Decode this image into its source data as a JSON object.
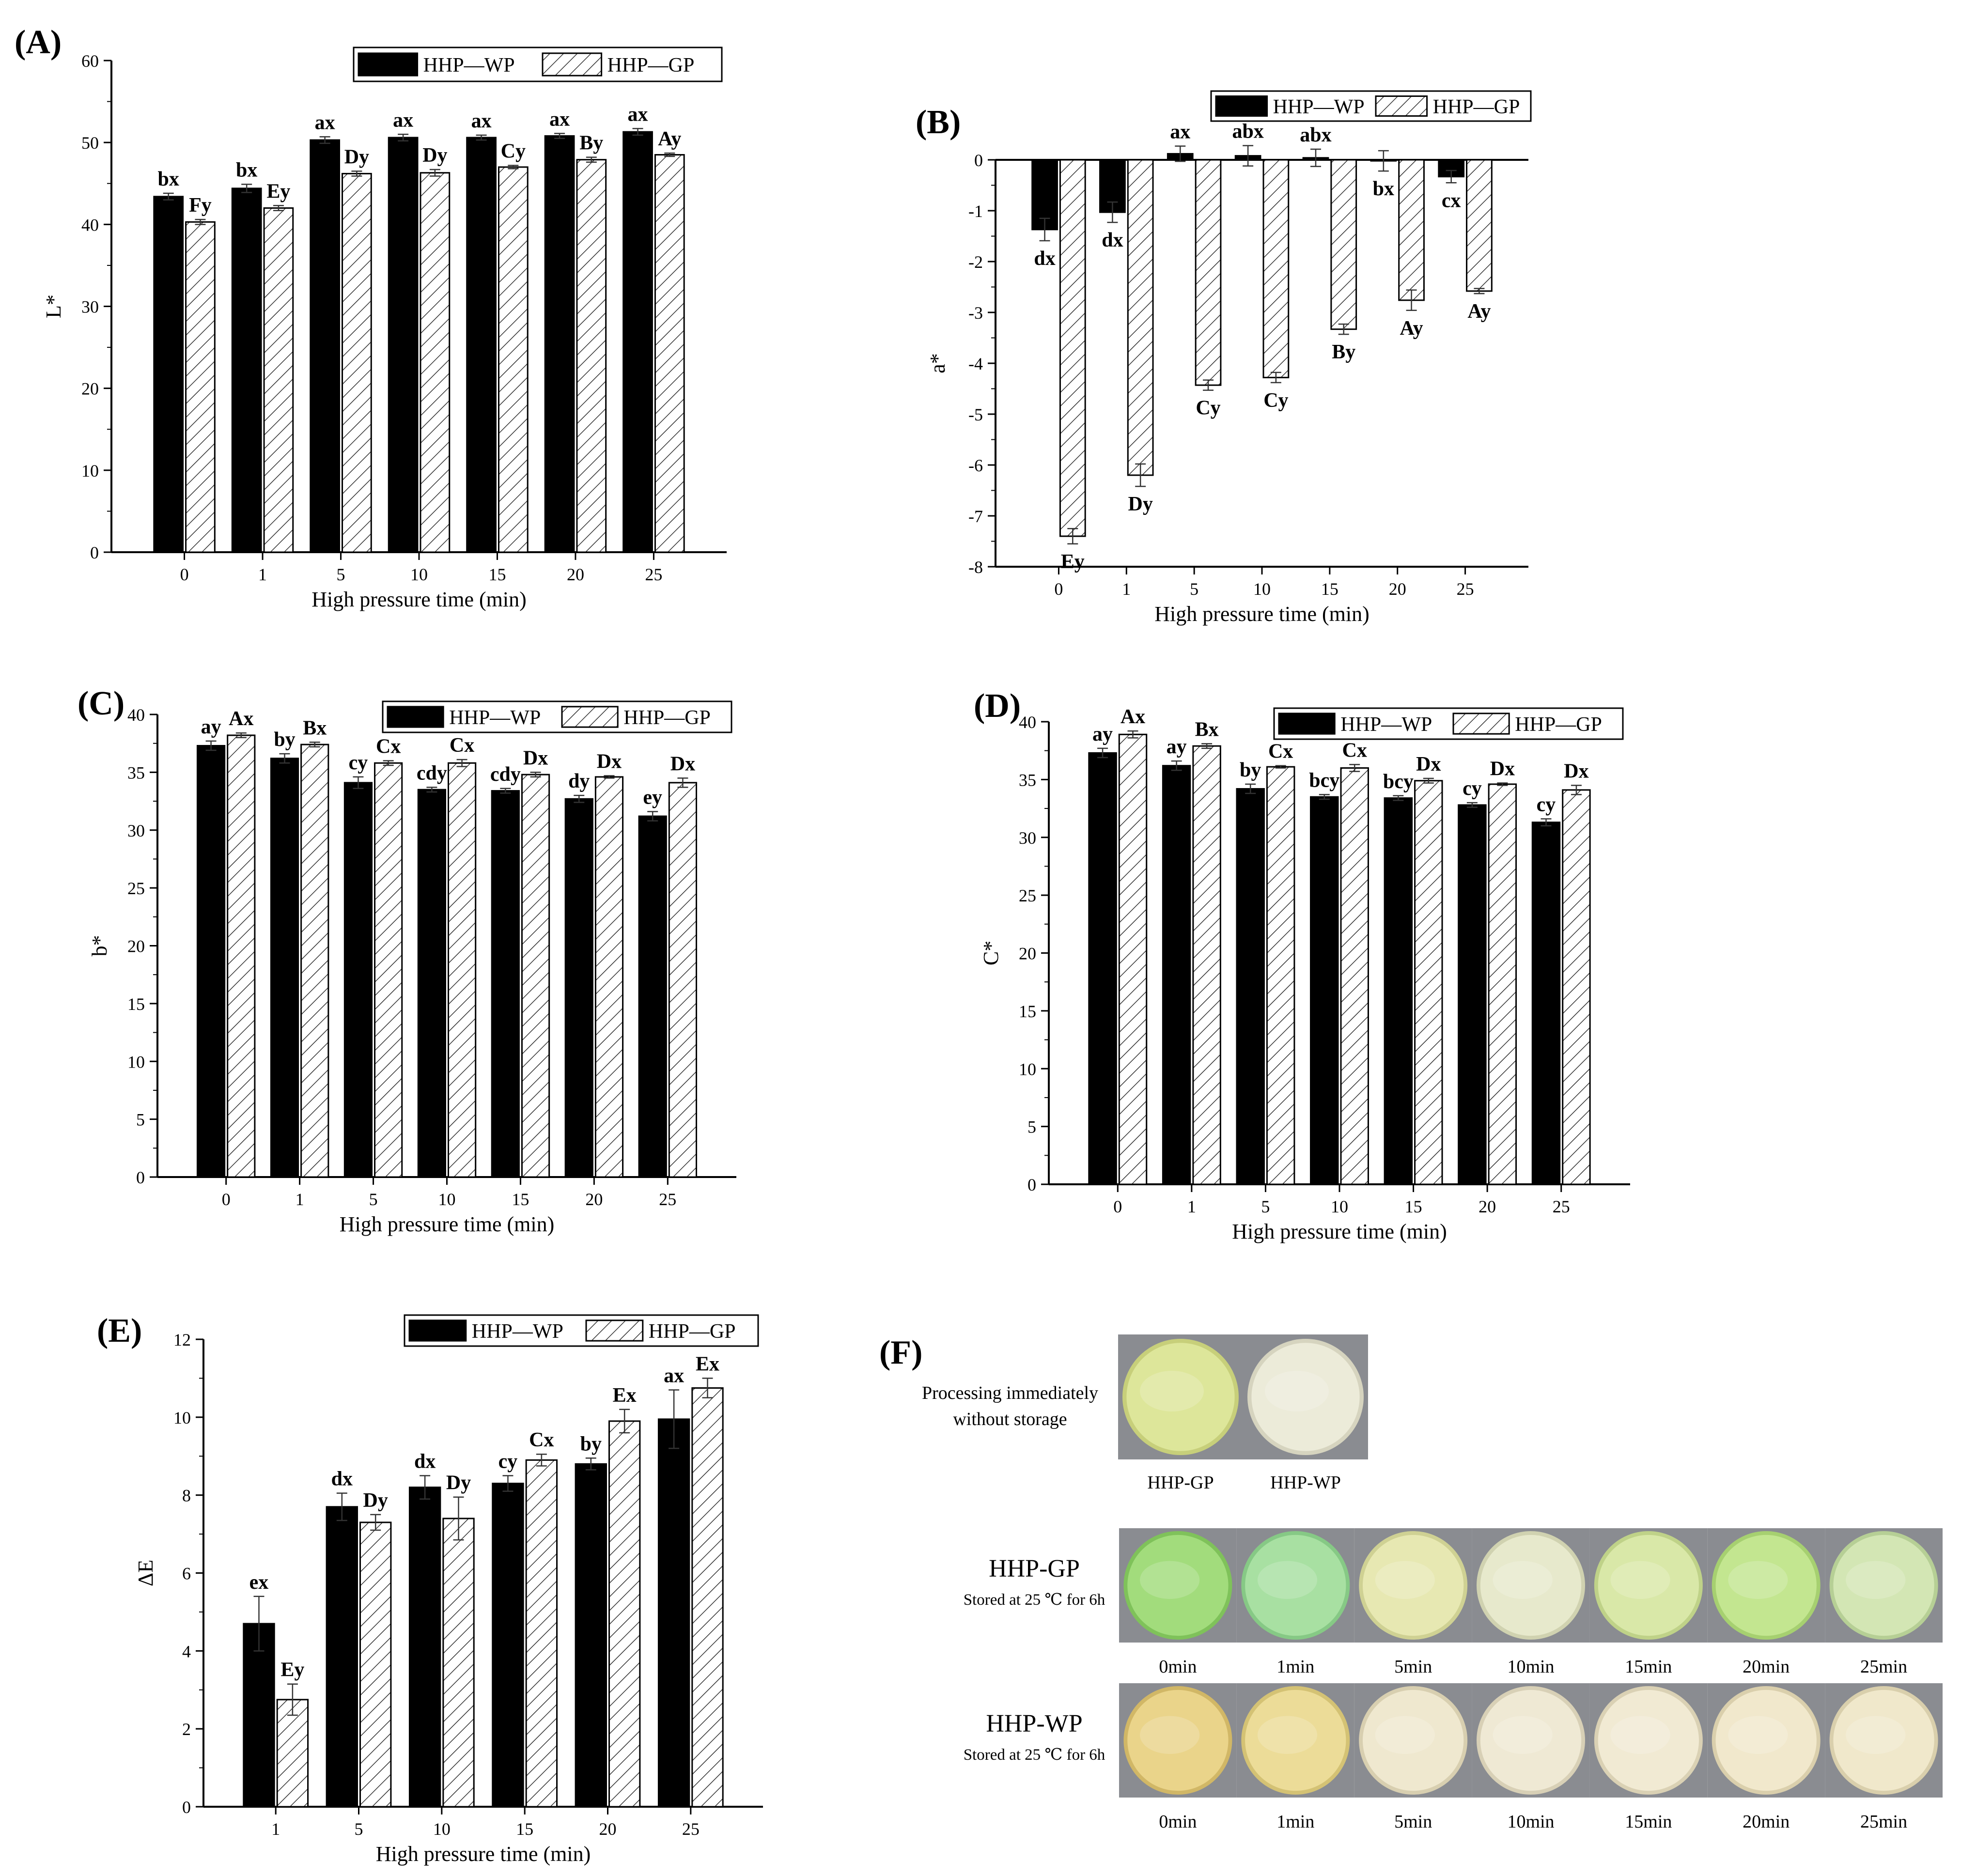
{
  "figure_caption": "",
  "series_names": [
    "HHP—WP",
    "HHP—GP"
  ],
  "chart_data": [
    {
      "id": "A",
      "panel_label": "(A)",
      "type": "bar",
      "xlabel": "High pressure time (min)",
      "ylabel": "L*",
      "ylim": [
        0,
        60
      ],
      "yticks": [
        0,
        10,
        20,
        30,
        40,
        50,
        60
      ],
      "categories": [
        "0",
        "1",
        "5",
        "10",
        "15",
        "20",
        "25"
      ],
      "legend": "top-right",
      "series": [
        {
          "name": "HHP—WP",
          "values": [
            43.4,
            44.4,
            50.3,
            50.6,
            50.6,
            50.8,
            51.3
          ],
          "errors": [
            0.4,
            0.5,
            0.4,
            0.4,
            0.3,
            0.3,
            0.4
          ],
          "labels": [
            "bx",
            "bx",
            "ax",
            "ax",
            "ax",
            "ax",
            "ax"
          ]
        },
        {
          "name": "HHP—GP",
          "values": [
            40.3,
            42.0,
            46.2,
            46.3,
            47.0,
            47.9,
            48.5
          ],
          "errors": [
            0.3,
            0.3,
            0.3,
            0.4,
            0.2,
            0.3,
            0.2
          ],
          "labels": [
            "Fy",
            "Ey",
            "Dy",
            "Dy",
            "Cy",
            "By",
            "Ay"
          ]
        }
      ]
    },
    {
      "id": "B",
      "panel_label": "(B)",
      "type": "bar",
      "xlabel": "High pressure time (min)",
      "ylabel": "a*",
      "ylim": [
        -8,
        0
      ],
      "yticks": [
        -8,
        -7,
        -6,
        -5,
        -4,
        -3,
        -2,
        -1,
        0
      ],
      "categories": [
        "0",
        "1",
        "5",
        "10",
        "15",
        "20",
        "25"
      ],
      "legend": "top-right",
      "series": [
        {
          "name": "HHP—WP",
          "values": [
            -1.37,
            -1.03,
            0.12,
            0.08,
            0.04,
            -0.02,
            -0.33
          ],
          "errors": [
            0.22,
            0.2,
            0.15,
            0.2,
            0.17,
            0.2,
            0.12
          ],
          "labels": [
            "dx",
            "dx",
            "ax",
            "abx",
            "abx",
            "bx",
            "cx"
          ]
        },
        {
          "name": "HHP—GP",
          "values": [
            -7.4,
            -6.2,
            -4.43,
            -4.28,
            -3.33,
            -2.76,
            -2.58
          ],
          "errors": [
            0.15,
            0.22,
            0.1,
            0.1,
            0.1,
            0.2,
            0.05
          ],
          "labels": [
            "Ey",
            "Dy",
            "Cy",
            "Cy",
            "By",
            "Ay",
            "Ay"
          ]
        }
      ]
    },
    {
      "id": "C",
      "panel_label": "(C)",
      "type": "bar",
      "xlabel": "High pressure time (min)",
      "ylabel": "b*",
      "ylim": [
        0,
        40
      ],
      "yticks": [
        0,
        5,
        10,
        15,
        20,
        25,
        30,
        35,
        40
      ],
      "categories": [
        "0",
        "1",
        "5",
        "10",
        "15",
        "20",
        "25"
      ],
      "legend": "top-right",
      "series": [
        {
          "name": "HHP—WP",
          "values": [
            37.3,
            36.2,
            34.1,
            33.5,
            33.4,
            32.7,
            31.2
          ],
          "errors": [
            0.4,
            0.4,
            0.5,
            0.2,
            0.2,
            0.3,
            0.4
          ],
          "labels": [
            "ay",
            "by",
            "cy",
            "cdy",
            "cdy",
            "dy",
            "ey"
          ]
        },
        {
          "name": "HHP—GP",
          "values": [
            38.2,
            37.4,
            35.8,
            35.8,
            34.8,
            34.6,
            34.1
          ],
          "errors": [
            0.2,
            0.2,
            0.2,
            0.3,
            0.2,
            0.1,
            0.4
          ],
          "labels": [
            "Ax",
            "Bx",
            "Cx",
            "Cx",
            "Dx",
            "Dx",
            "Dx"
          ]
        }
      ]
    },
    {
      "id": "D",
      "panel_label": "(D)",
      "type": "bar",
      "xlabel": "High pressure time (min)",
      "ylabel": "C*",
      "ylim": [
        0,
        40
      ],
      "yticks": [
        0,
        5,
        10,
        15,
        20,
        25,
        30,
        35,
        40
      ],
      "categories": [
        "0",
        "1",
        "5",
        "10",
        "15",
        "20",
        "25"
      ],
      "legend": "top-right",
      "series": [
        {
          "name": "HHP—WP",
          "values": [
            37.3,
            36.2,
            34.2,
            33.5,
            33.4,
            32.8,
            31.3
          ],
          "errors": [
            0.4,
            0.4,
            0.4,
            0.2,
            0.2,
            0.2,
            0.3
          ],
          "labels": [
            "ay",
            "ay",
            "by",
            "bcy",
            "bcy",
            "cy",
            "cy"
          ]
        },
        {
          "name": "HHP—GP",
          "values": [
            38.9,
            37.9,
            36.1,
            36.0,
            34.9,
            34.6,
            34.1
          ],
          "errors": [
            0.3,
            0.2,
            0.1,
            0.3,
            0.2,
            0.1,
            0.4
          ],
          "labels": [
            "Ax",
            "Bx",
            "Cx",
            "Cx",
            "Dx",
            "Dx",
            "Dx"
          ]
        }
      ]
    },
    {
      "id": "E",
      "panel_label": "(E)",
      "type": "bar",
      "xlabel": "High pressure time (min)",
      "ylabel": "ΔE",
      "ylim": [
        0,
        12
      ],
      "yticks": [
        0,
        2,
        4,
        6,
        8,
        10,
        12
      ],
      "categories": [
        "1",
        "5",
        "10",
        "15",
        "20",
        "25"
      ],
      "legend": "top-right",
      "series": [
        {
          "name": "HHP—WP",
          "values": [
            4.7,
            7.7,
            8.2,
            8.3,
            8.8,
            9.95
          ],
          "errors": [
            0.7,
            0.35,
            0.3,
            0.2,
            0.15,
            0.75
          ],
          "labels": [
            "ex",
            "dx",
            "dx",
            "cy",
            "by",
            "ax"
          ]
        },
        {
          "name": "HHP—GP",
          "values": [
            2.75,
            7.3,
            7.4,
            8.9,
            9.9,
            10.75
          ],
          "errors": [
            0.4,
            0.2,
            0.55,
            0.15,
            0.3,
            0.25
          ],
          "labels": [
            "Ey",
            "Dy",
            "Dy",
            "Cx",
            "Ex",
            "Ex"
          ]
        }
      ]
    }
  ],
  "panel_f": {
    "panel_label": "(F)",
    "top_caption_line1": "Processing immediately",
    "top_caption_line2": "without storage",
    "top_samples": [
      {
        "label": "HHP-GP",
        "color": "#dde69a",
        "edge": "#c7cf7a"
      },
      {
        "label": "HHP-WP",
        "color": "#ecebd9",
        "edge": "#d6d4bf"
      }
    ],
    "rows": [
      {
        "title": "HHP-GP",
        "subtitle": "Stored at 25 ℃ for 6h",
        "samples": [
          {
            "label": "0min",
            "color": "#a2dc7c",
            "edge": "#7fc25a"
          },
          {
            "label": "1min",
            "color": "#a8e0a2",
            "edge": "#86c985"
          },
          {
            "label": "5min",
            "color": "#e7e8b2",
            "edge": "#cfd193"
          },
          {
            "label": "10min",
            "color": "#e7e9cc",
            "edge": "#d0d2b0"
          },
          {
            "label": "15min",
            "color": "#d9e8a8",
            "edge": "#bfd288"
          },
          {
            "label": "20min",
            "color": "#c3e690",
            "edge": "#a6d070"
          },
          {
            "label": "25min",
            "color": "#d3e6b4",
            "edge": "#b6cf95"
          }
        ]
      },
      {
        "title": "HHP-WP",
        "subtitle": "Stored at 25 ℃ for 6h",
        "samples": [
          {
            "label": "0min",
            "color": "#ead48a",
            "edge": "#d1b766"
          },
          {
            "label": "1min",
            "color": "#ecdc98",
            "edge": "#d4c274"
          },
          {
            "label": "5min",
            "color": "#efe8cf",
            "edge": "#d8cfb0"
          },
          {
            "label": "10min",
            "color": "#efe9d4",
            "edge": "#d8d0b6"
          },
          {
            "label": "15min",
            "color": "#f1ead3",
            "edge": "#dad1b4"
          },
          {
            "label": "20min",
            "color": "#f1e8cc",
            "edge": "#dacfac"
          },
          {
            "label": "25min",
            "color": "#f0e8cb",
            "edge": "#d9cfac"
          }
        ]
      }
    ]
  }
}
